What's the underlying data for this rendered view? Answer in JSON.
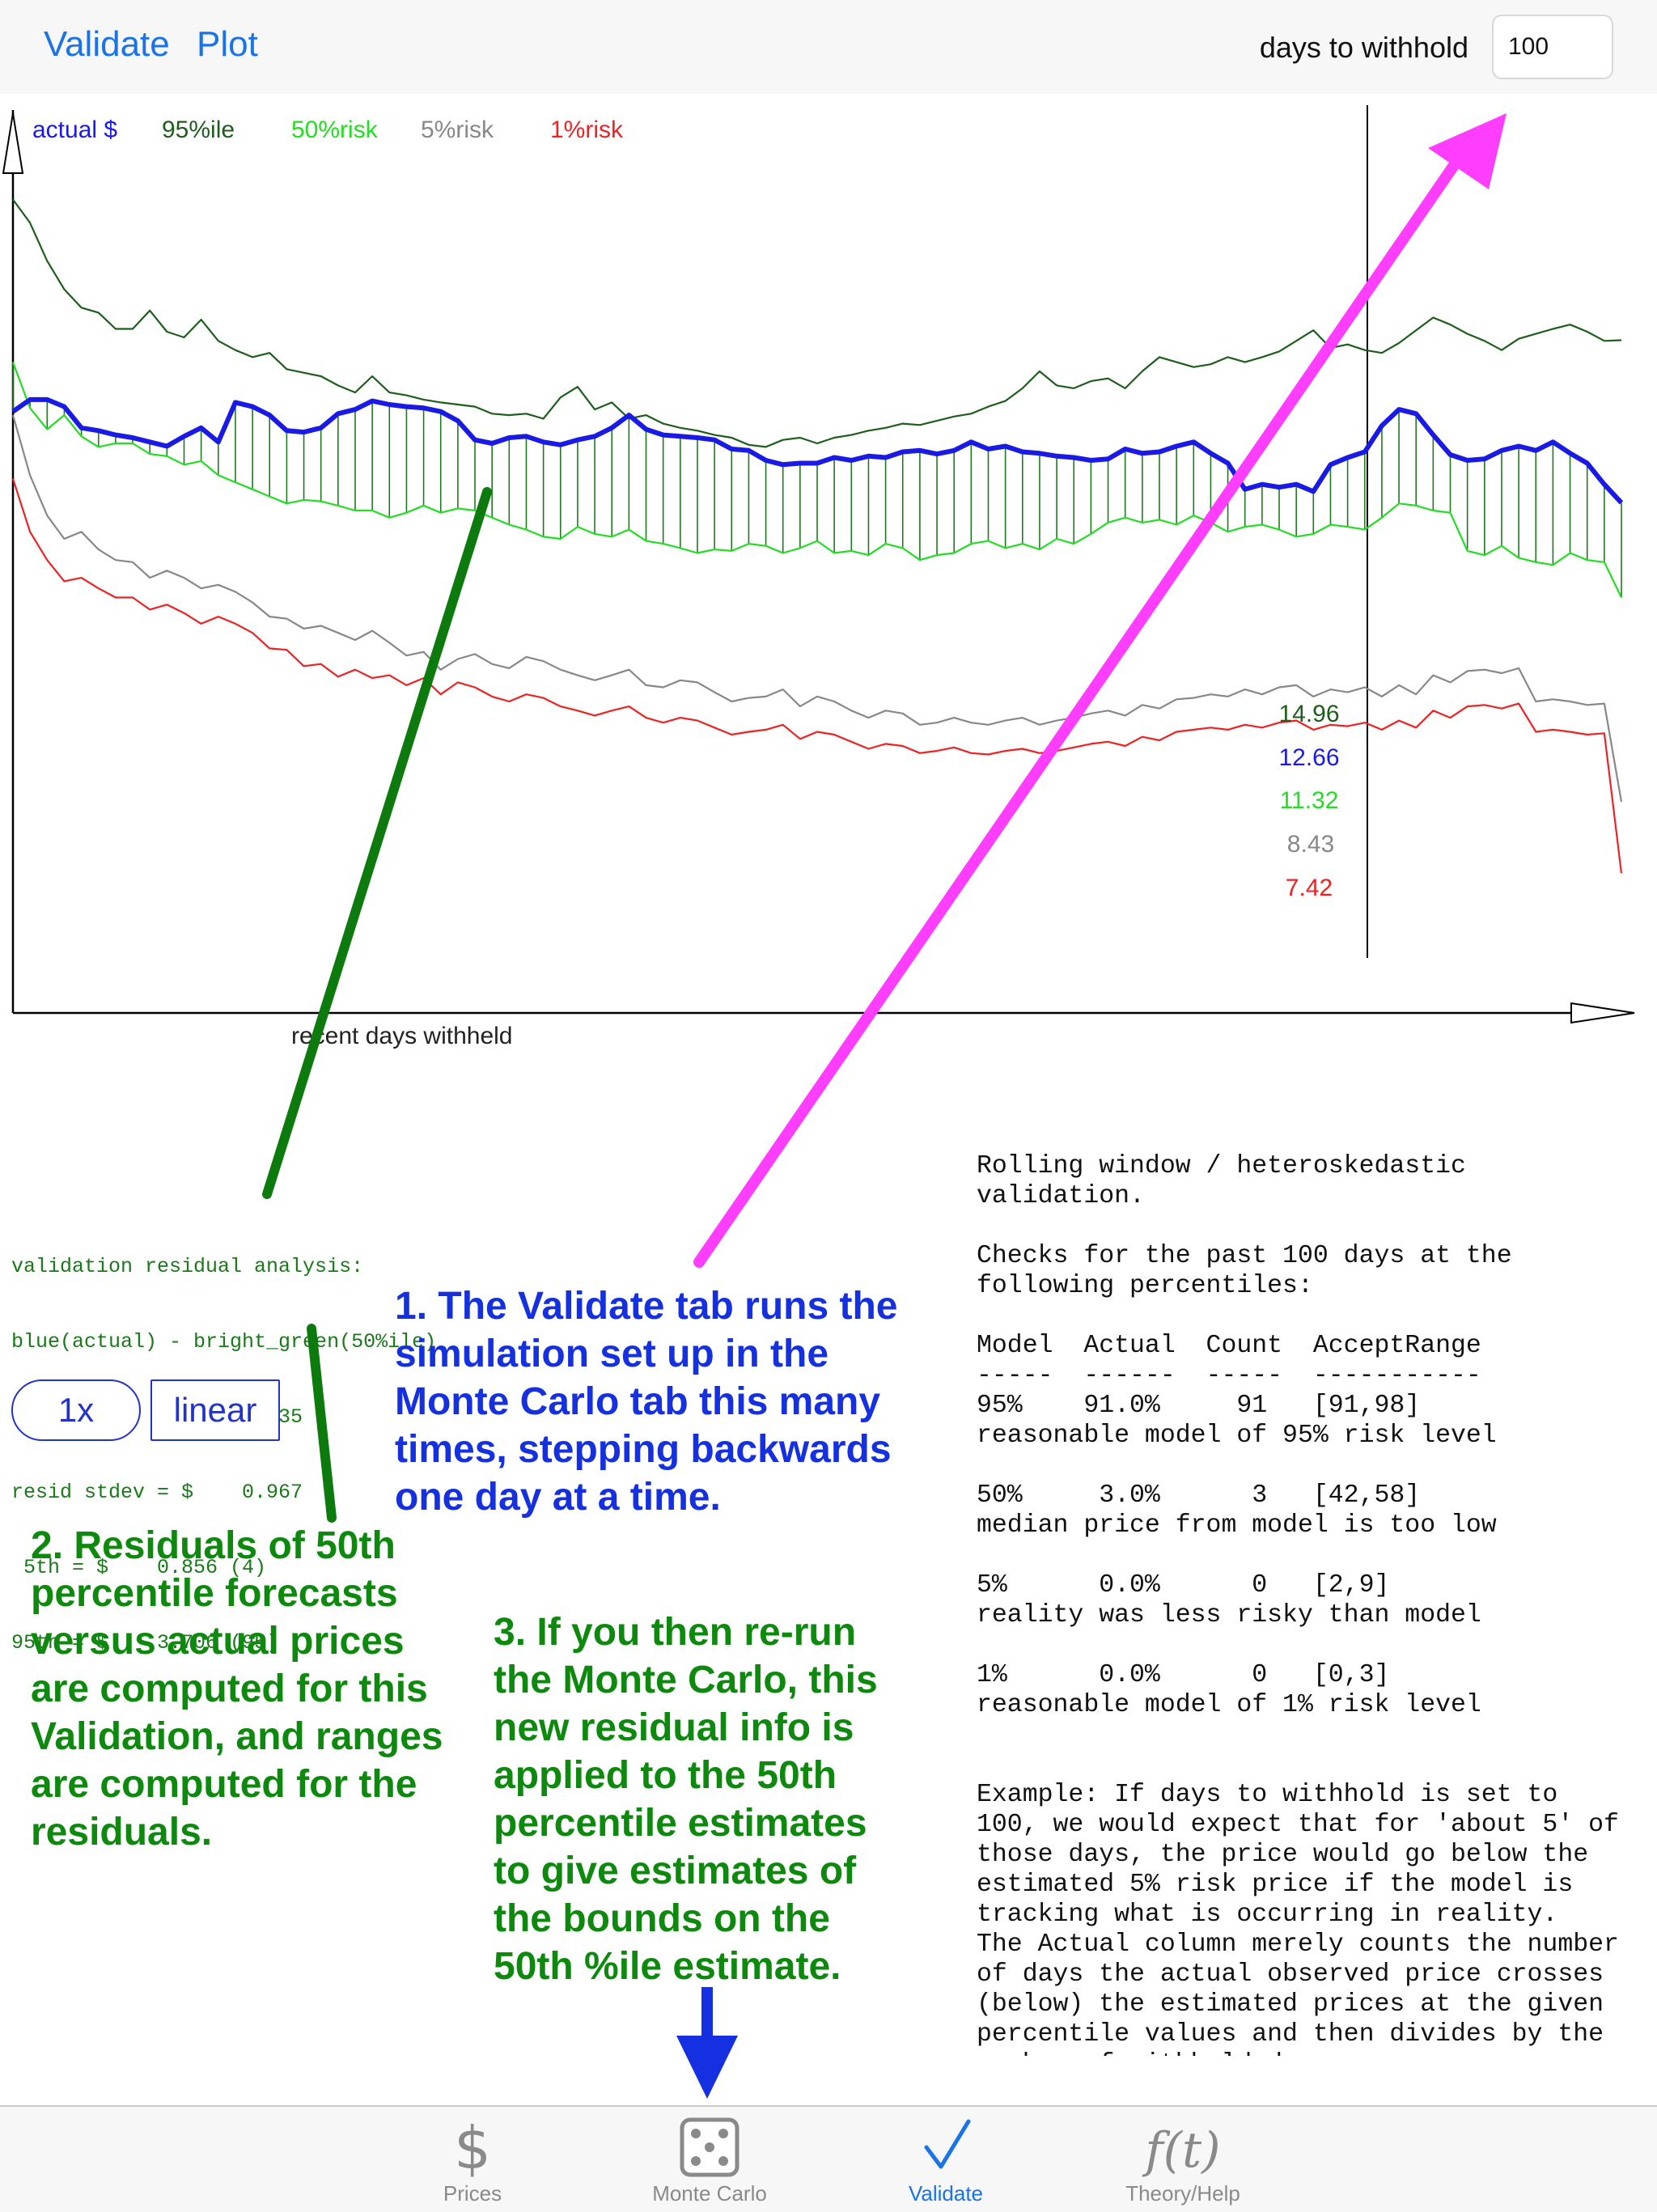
{
  "header": {
    "validate_label": "Validate",
    "plot_label": "Plot",
    "withhold_label": "days to withhold",
    "withhold_value": "100"
  },
  "chart": {
    "legend": [
      {
        "label": "actual $",
        "color": "#1a1ae6"
      },
      {
        "label": "95%ile",
        "color": "#1d5e1d"
      },
      {
        "label": "50%risk",
        "color": "#22dd22"
      },
      {
        "label": "5%risk",
        "color": "#888888"
      },
      {
        "label": "1%risk",
        "color": "#ee2222"
      }
    ],
    "x_axis_label": "recent days withheld",
    "end_values": [
      "14.96",
      "12.66",
      "11.32",
      "8.43",
      "7.42"
    ]
  },
  "chart_data": {
    "type": "line",
    "xlabel": "recent days withheld",
    "series": [
      {
        "name": "actual $",
        "color": "#1a1ae6",
        "values": [
          13.95,
          14.12,
          14.12,
          14.02,
          13.72,
          13.68,
          13.62,
          13.58,
          13.52,
          13.46,
          13.6,
          13.72,
          13.52,
          14.08,
          14.02,
          13.9,
          13.68,
          13.66,
          13.72,
          13.92,
          13.98,
          14.1,
          14.05,
          14.02,
          14.0,
          13.95,
          13.82,
          13.55,
          13.5,
          13.58,
          13.6,
          13.52,
          13.48,
          13.55,
          13.6,
          13.72,
          13.9,
          13.7,
          13.62,
          13.6,
          13.58,
          13.55,
          13.42,
          13.4,
          13.26,
          13.2,
          13.22,
          13.22,
          13.3,
          13.26,
          13.32,
          13.3,
          13.38,
          13.4,
          13.35,
          13.4,
          13.52,
          13.42,
          13.46,
          13.38,
          13.36,
          13.32,
          13.3,
          13.26,
          13.28,
          13.42,
          13.36,
          13.38,
          13.46,
          13.52,
          13.36,
          13.22,
          12.85,
          12.92,
          12.88,
          12.92,
          12.82,
          13.2,
          13.3,
          13.38,
          13.75,
          13.98,
          13.92,
          13.62,
          13.34,
          13.26,
          13.28,
          13.4,
          13.46,
          13.4,
          13.52,
          13.36,
          13.22,
          12.92,
          12.66
        ]
      },
      {
        "name": "95%ile",
        "color": "#1d5e1d",
        "values": [
          16.95,
          16.62,
          16.08,
          15.68,
          15.42,
          15.35,
          15.12,
          15.12,
          15.38,
          15.08,
          15.0,
          15.25,
          14.95,
          14.82,
          14.72,
          14.78,
          14.55,
          14.5,
          14.45,
          14.32,
          14.22,
          14.45,
          14.22,
          14.18,
          14.12,
          14.08,
          14.05,
          14.02,
          13.92,
          13.9,
          13.92,
          13.85,
          14.15,
          14.3,
          13.98,
          14.08,
          13.85,
          13.9,
          13.78,
          13.72,
          13.68,
          13.62,
          13.58,
          13.48,
          13.45,
          13.55,
          13.58,
          13.5,
          13.58,
          13.62,
          13.68,
          13.72,
          13.78,
          13.76,
          13.82,
          13.88,
          13.92,
          14.02,
          14.1,
          14.28,
          14.52,
          14.32,
          14.28,
          14.38,
          14.42,
          14.28,
          14.52,
          14.72,
          14.65,
          14.58,
          14.62,
          14.72,
          14.65,
          14.72,
          14.8,
          14.95,
          15.1,
          14.85,
          14.9,
          14.82,
          14.78,
          14.92,
          15.1,
          15.28,
          15.18,
          15.05,
          14.95,
          14.82,
          14.98,
          15.05,
          15.12,
          15.18,
          15.08,
          14.95,
          14.96
        ]
      },
      {
        "name": "50%risk",
        "color": "#22dd22",
        "values": [
          14.65,
          14.0,
          13.7,
          13.9,
          13.6,
          13.45,
          13.5,
          13.5,
          13.35,
          13.32,
          13.2,
          13.25,
          13.05,
          12.95,
          12.85,
          12.75,
          12.65,
          12.7,
          12.68,
          12.62,
          12.55,
          12.55,
          12.45,
          12.52,
          12.62,
          12.52,
          12.58,
          12.55,
          12.45,
          12.35,
          12.28,
          12.18,
          12.15,
          12.32,
          12.22,
          12.18,
          12.28,
          12.12,
          12.08,
          12.02,
          11.95,
          12.0,
          11.98,
          12.08,
          12.05,
          11.95,
          12.02,
          12.12,
          11.95,
          11.98,
          11.92,
          12.08,
          12.02,
          11.85,
          11.92,
          11.95,
          12.08,
          12.12,
          12.02,
          12.08,
          12.0,
          12.15,
          12.08,
          12.22,
          12.38,
          12.45,
          12.38,
          12.42,
          12.35,
          12.48,
          12.38,
          12.25,
          12.32,
          12.35,
          12.28,
          12.18,
          12.22,
          12.35,
          12.32,
          12.28,
          12.45,
          12.65,
          12.62,
          12.55,
          12.52,
          11.98,
          11.92,
          12.05,
          11.88,
          11.82,
          11.78,
          11.95,
          11.85,
          11.82,
          11.32
        ]
      },
      {
        "name": "5%risk",
        "color": "#888888",
        "values": [
          13.9,
          13.05,
          12.48,
          12.15,
          12.25,
          12.0,
          11.85,
          11.82,
          11.6,
          11.7,
          11.6,
          11.45,
          11.5,
          11.4,
          11.25,
          11.05,
          11.02,
          10.88,
          10.92,
          10.82,
          10.72,
          10.85,
          10.68,
          10.5,
          10.55,
          10.3,
          10.45,
          10.52,
          10.38,
          10.32,
          10.48,
          10.42,
          10.3,
          10.22,
          10.15,
          10.22,
          10.3,
          10.08,
          10.05,
          10.15,
          10.12,
          9.98,
          9.85,
          9.9,
          9.92,
          10.02,
          9.78,
          9.92,
          9.85,
          9.72,
          9.62,
          9.72,
          9.68,
          9.52,
          9.55,
          9.62,
          9.55,
          9.52,
          9.58,
          9.62,
          9.52,
          9.58,
          9.62,
          9.68,
          9.72,
          9.65,
          9.8,
          9.75,
          9.88,
          9.9,
          9.95,
          9.92,
          10.02,
          9.95,
          10.05,
          10.08,
          9.92,
          10.02,
          9.98,
          10.05,
          9.92,
          10.08,
          9.95,
          10.22,
          10.12,
          10.28,
          10.3,
          10.25,
          10.32,
          9.85,
          9.88,
          9.85,
          9.8,
          9.82,
          8.43
        ]
      },
      {
        "name": "1%risk",
        "color": "#ee2222",
        "values": [
          13.0,
          12.25,
          11.85,
          11.55,
          11.6,
          11.45,
          11.32,
          11.32,
          11.15,
          11.22,
          11.1,
          10.95,
          11.05,
          10.95,
          10.82,
          10.6,
          10.58,
          10.35,
          10.38,
          10.2,
          10.3,
          10.18,
          10.22,
          10.08,
          10.18,
          9.95,
          10.12,
          10.05,
          9.92,
          9.85,
          9.95,
          9.9,
          9.78,
          9.72,
          9.65,
          9.72,
          9.78,
          9.62,
          9.55,
          9.62,
          9.58,
          9.48,
          9.38,
          9.42,
          9.45,
          9.52,
          9.32,
          9.42,
          9.38,
          9.28,
          9.18,
          9.25,
          9.22,
          9.12,
          9.15,
          9.2,
          9.12,
          9.1,
          9.15,
          9.18,
          9.12,
          9.15,
          9.2,
          9.25,
          9.28,
          9.22,
          9.35,
          9.3,
          9.42,
          9.45,
          9.48,
          9.45,
          9.52,
          9.48,
          9.55,
          9.58,
          9.45,
          9.52,
          9.5,
          9.55,
          9.45,
          9.58,
          9.48,
          9.72,
          9.62,
          9.78,
          9.8,
          9.75,
          9.82,
          9.42,
          9.45,
          9.42,
          9.38,
          9.4,
          7.42
        ]
      }
    ]
  },
  "residual": {
    "lines": [
      "validation residual analysis:",
      "blue(actual) - bright_green(50%ile)",
      "resid mean  = $    1.835",
      "resid stdev = $    0.967",
      " 5th = $    0.856 (4)",
      "95th = $    3.706 (95)"
    ]
  },
  "controls": {
    "speed_label": "1x",
    "scale_label": "linear"
  },
  "report": {
    "text": "Rolling window / heteroskedastic\nvalidation.\n\nChecks for the past 100 days at the\nfollowing percentiles:\n\nModel  Actual  Count  AcceptRange\n-----  ------  -----  -----------\n95%    91.0%     91   [91,98]\nreasonable model of 95% risk level\n\n50%     3.0%      3   [42,58]\nmedian price from model is too low\n\n5%      0.0%      0   [2,9]\nreality was less risky than model\n\n1%      0.0%      0   [0,3]\nreasonable model of 1% risk level\n\n\nExample: If days to withhold is set to\n100, we would expect that for 'about 5' of\nthose days, the price would go below the\nestimated 5% risk price if the model is\ntracking what is occurring in reality.\nThe Actual column merely counts the number\nof days the actual observed price crosses\n(below) the estimated prices at the given\npercentile values and then divides by the\nnumber of withheld days."
  },
  "annotations": {
    "note1": "1. The Validate tab runs the simulation set up in the Monte Carlo tab this many times, stepping backwards one day at a time.",
    "note2": "2. Residuals of 50th percentile forecasts versus actual prices are computed for this Validation, and ranges are computed for the residuals.",
    "note3": "3. If you then re-run the Monte Carlo, this new residual info is applied to the 50th percentile estimates to give estimates of the bounds on the 50th %ile estimate.",
    "colors": {
      "note1": "#1530e0",
      "note2": "#0d8a0d",
      "arrow_magenta": "#ff3dff",
      "arrow_green": "#0d7a0d",
      "arrow_blue": "#1530e0"
    }
  },
  "tabbar": {
    "tabs": [
      {
        "label": "Prices",
        "icon": "dollar-icon",
        "active": false
      },
      {
        "label": "Monte Carlo",
        "icon": "dice-icon",
        "active": false
      },
      {
        "label": "Validate",
        "icon": "checkmark-icon",
        "active": true
      },
      {
        "label": "Theory/Help",
        "icon": "function-icon",
        "active": false
      }
    ],
    "active_color": "#1a73e8",
    "inactive_color": "#8a8a8a"
  }
}
